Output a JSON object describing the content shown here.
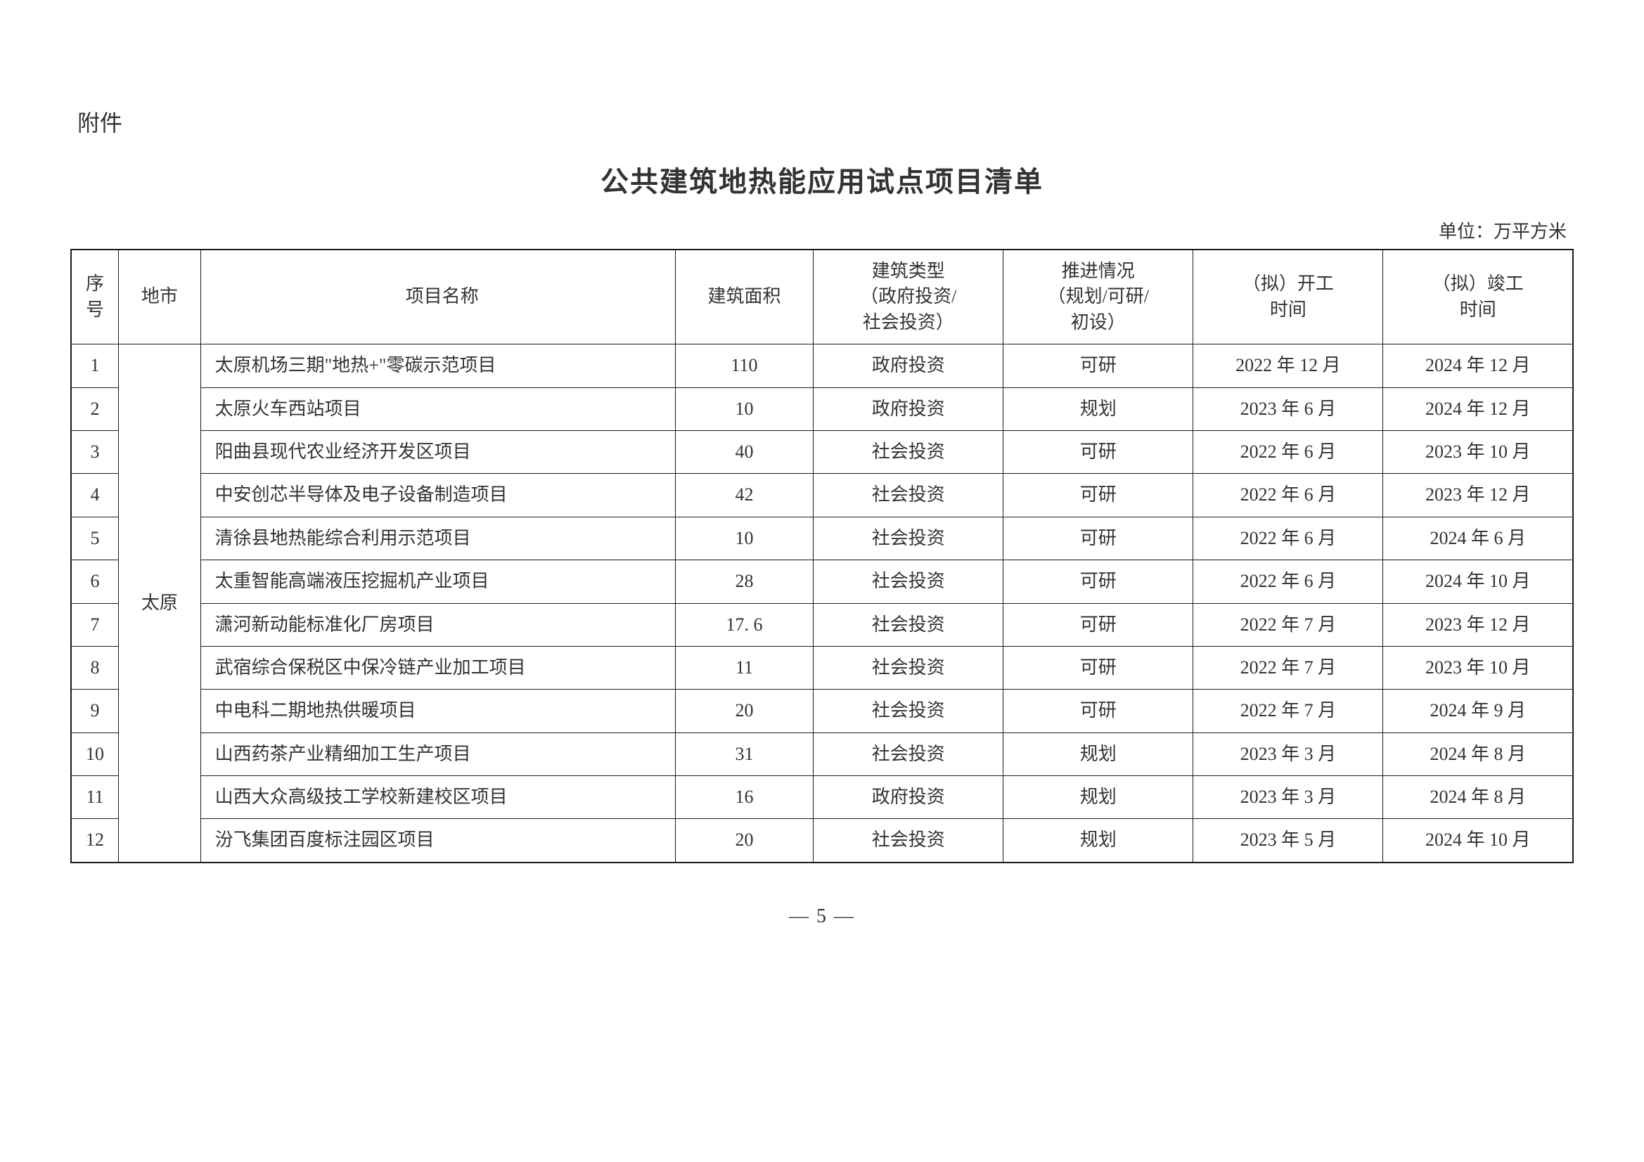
{
  "attachment": "附件",
  "title": "公共建筑地热能应用试点项目清单",
  "unit": "单位：万平方米",
  "pageNumber": "— 5 —",
  "table": {
    "headers": {
      "seq": "序号",
      "city": "地市",
      "projectName": "项目名称",
      "area": "建筑面积",
      "type": "建筑类型\n（政府投资/\n社会投资）",
      "status": "推进情况\n（规划/可研/\n初设）",
      "start": "（拟）开工\n时间",
      "end": "（拟）竣工\n时间"
    },
    "cityGroup": "太原",
    "rows": [
      {
        "seq": "1",
        "name": "太原机场三期\"地热+\"零碳示范项目",
        "area": "110",
        "type": "政府投资",
        "status": "可研",
        "start": "2022 年 12 月",
        "end": "2024 年 12 月"
      },
      {
        "seq": "2",
        "name": "太原火车西站项目",
        "area": "10",
        "type": "政府投资",
        "status": "规划",
        "start": "2023 年 6 月",
        "end": "2024 年 12 月"
      },
      {
        "seq": "3",
        "name": "阳曲县现代农业经济开发区项目",
        "area": "40",
        "type": "社会投资",
        "status": "可研",
        "start": "2022 年 6 月",
        "end": "2023 年 10 月"
      },
      {
        "seq": "4",
        "name": "中安创芯半导体及电子设备制造项目",
        "area": "42",
        "type": "社会投资",
        "status": "可研",
        "start": "2022 年 6 月",
        "end": "2023 年 12 月"
      },
      {
        "seq": "5",
        "name": "清徐县地热能综合利用示范项目",
        "area": "10",
        "type": "社会投资",
        "status": "可研",
        "start": "2022 年 6 月",
        "end": "2024 年 6 月"
      },
      {
        "seq": "6",
        "name": "太重智能高端液压挖掘机产业项目",
        "area": "28",
        "type": "社会投资",
        "status": "可研",
        "start": "2022 年 6 月",
        "end": "2024 年 10 月"
      },
      {
        "seq": "7",
        "name": "潇河新动能标准化厂房项目",
        "area": "17. 6",
        "type": "社会投资",
        "status": "可研",
        "start": "2022 年 7 月",
        "end": "2023 年 12 月"
      },
      {
        "seq": "8",
        "name": "武宿综合保税区中保冷链产业加工项目",
        "area": "11",
        "type": "社会投资",
        "status": "可研",
        "start": "2022 年 7 月",
        "end": "2023 年 10 月"
      },
      {
        "seq": "9",
        "name": "中电科二期地热供暖项目",
        "area": "20",
        "type": "社会投资",
        "status": "可研",
        "start": "2022 年 7 月",
        "end": "2024 年 9 月"
      },
      {
        "seq": "10",
        "name": "山西药茶产业精细加工生产项目",
        "area": "31",
        "type": "社会投资",
        "status": "规划",
        "start": "2023 年 3 月",
        "end": "2024 年 8 月"
      },
      {
        "seq": "11",
        "name": "山西大众高级技工学校新建校区项目",
        "area": "16",
        "type": "政府投资",
        "status": "规划",
        "start": "2023 年 3 月",
        "end": "2024 年 8 月"
      },
      {
        "seq": "12",
        "name": "汾飞集团百度标注园区项目",
        "area": "20",
        "type": "社会投资",
        "status": "规划",
        "start": "2023 年 5 月",
        "end": "2024 年 10 月"
      }
    ]
  },
  "styles": {
    "borderColor": "#1a1a1a",
    "textColor": "#333333",
    "bgColor": "#ffffff",
    "titleFontSize": 40,
    "cellFontSize": 26,
    "attachFontSize": 32
  }
}
